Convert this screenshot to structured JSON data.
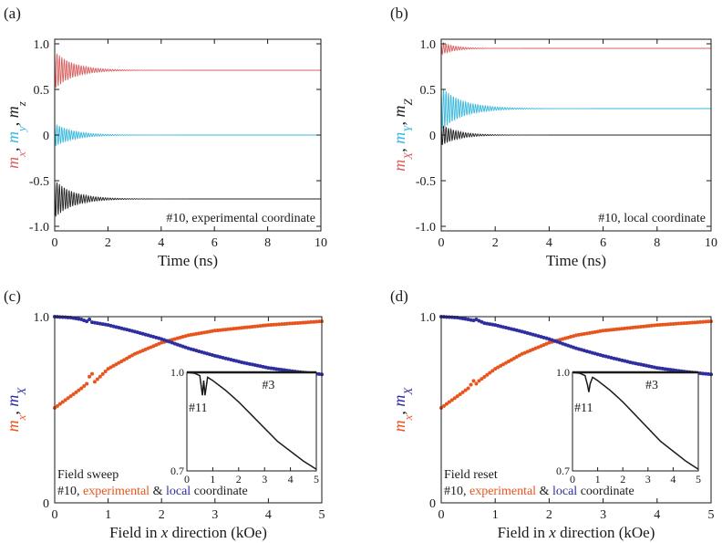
{
  "colors": {
    "mx": "#d95f5f",
    "my": "#39b8dc",
    "mz": "#222222",
    "experimental": "#e8541c",
    "local": "#2e2ea0",
    "axis": "#1a1a1a"
  },
  "chart_data": [
    {
      "id": "a",
      "panel_label": "(a)",
      "type": "line",
      "title": "",
      "xlabel": "Time (ns)",
      "ylabel_parts": [
        {
          "text": "m",
          "sub": "x",
          "color": "#d95f5f"
        },
        {
          "text": ", ",
          "sub": "",
          "color": "#1a1a1a"
        },
        {
          "text": "m",
          "sub": "y",
          "color": "#39b8dc"
        },
        {
          "text": ", ",
          "sub": "",
          "color": "#1a1a1a"
        },
        {
          "text": "m",
          "sub": "z",
          "color": "#222222"
        }
      ],
      "xlim": [
        0,
        10
      ],
      "ylim": [
        -1.05,
        1.05
      ],
      "xticks": [
        0,
        2,
        4,
        6,
        8,
        10
      ],
      "xtick_labels": [
        "0",
        "2",
        "4",
        "6",
        "8",
        "10"
      ],
      "yticks": [
        1.0,
        0.5,
        0,
        -0.5,
        -1.0
      ],
      "ytick_labels": [
        "1.0",
        "0.5",
        "0",
        "-0.5",
        "-1.0"
      ],
      "annotation": "#10, experimental coordinate",
      "series": [
        {
          "name": "m_x",
          "color": "#d95f5f",
          "final": 0.71,
          "initial_amplitude": 0.21,
          "damping_ns": 0.7
        },
        {
          "name": "m_y",
          "color": "#39b8dc",
          "final": 0.0,
          "initial_amplitude": 0.13,
          "damping_ns": 0.7
        },
        {
          "name": "m_z",
          "color": "#222222",
          "final": -0.7,
          "initial_amplitude": 0.21,
          "damping_ns": 0.7
        }
      ]
    },
    {
      "id": "b",
      "panel_label": "(b)",
      "type": "line",
      "title": "",
      "xlabel": "Time (ns)",
      "ylabel_parts": [
        {
          "text": "m",
          "sub": "X",
          "color": "#d95f5f"
        },
        {
          "text": ", ",
          "sub": "",
          "color": "#1a1a1a"
        },
        {
          "text": "m",
          "sub": "Y",
          "color": "#39b8dc"
        },
        {
          "text": ", ",
          "sub": "",
          "color": "#1a1a1a"
        },
        {
          "text": "m",
          "sub": "Z",
          "color": "#222222"
        }
      ],
      "xlim": [
        0,
        10
      ],
      "ylim": [
        -1.05,
        1.05
      ],
      "xticks": [
        0,
        2,
        4,
        6,
        8,
        10
      ],
      "xtick_labels": [
        "0",
        "2",
        "4",
        "6",
        "8",
        "10"
      ],
      "yticks": [
        1.0,
        0.5,
        0,
        -0.5,
        -1.0
      ],
      "ytick_labels": [
        "1.0",
        "0.5",
        "0",
        "-0.5",
        "-1.0"
      ],
      "annotation": "#10, local coordinate",
      "series": [
        {
          "name": "m_X",
          "color": "#d95f5f",
          "final": 0.95,
          "initial_amplitude": 0.07,
          "damping_ns": 0.5
        },
        {
          "name": "m_Y",
          "color": "#39b8dc",
          "final": 0.29,
          "initial_amplitude": 0.24,
          "damping_ns": 0.8
        },
        {
          "name": "m_Z",
          "color": "#222222",
          "final": 0.0,
          "initial_amplitude": 0.12,
          "damping_ns": 0.6
        }
      ]
    },
    {
      "id": "c",
      "panel_label": "(c)",
      "type": "scatter",
      "title": "",
      "xlabel_parts": [
        "Field in ",
        "x",
        " direction (kOe)"
      ],
      "ylabel_parts": [
        {
          "text": "m",
          "sub": "x",
          "color": "#e8541c"
        },
        {
          "text": ", ",
          "sub": "",
          "color": "#1a1a1a"
        },
        {
          "text": "m",
          "sub": "X",
          "color": "#2e2ea0"
        }
      ],
      "xlim": [
        0,
        5
      ],
      "ylim": [
        0,
        1.0
      ],
      "xticks": [
        0,
        1,
        2,
        3,
        4,
        5
      ],
      "xtick_labels": [
        "0",
        "1",
        "2",
        "3",
        "4",
        "5"
      ],
      "yticks": [
        1.0,
        0
      ],
      "ytick_labels": [
        "1.0",
        "0"
      ],
      "legend_lines": {
        "line1": "Field sweep",
        "line2_prefix": "#10, ",
        "experimental": "experimental",
        "amp": " & ",
        "local": "local",
        "suffix": " coordinate"
      },
      "series": [
        {
          "name": "m_x (experimental)",
          "color": "#e8541c",
          "x": [
            0,
            0.5,
            0.62,
            0.68,
            0.75,
            1.0,
            1.5,
            2.0,
            2.5,
            3.0,
            3.5,
            4.0,
            4.5,
            5.0
          ],
          "y": [
            0.51,
            0.615,
            0.645,
            0.71,
            0.65,
            0.72,
            0.8,
            0.86,
            0.9,
            0.925,
            0.94,
            0.955,
            0.965,
            0.975
          ]
        },
        {
          "name": "m_X (local)",
          "color": "#2e2ea0",
          "x": [
            0,
            0.3,
            0.5,
            0.6,
            0.65,
            0.7,
            0.8,
            1.0,
            1.5,
            2.0,
            2.5,
            3.0,
            3.5,
            4.0,
            4.5,
            5.0
          ],
          "y": [
            1.0,
            0.995,
            0.985,
            0.975,
            0.985,
            0.97,
            0.965,
            0.955,
            0.92,
            0.88,
            0.83,
            0.79,
            0.755,
            0.725,
            0.705,
            0.69
          ]
        }
      ],
      "inset": {
        "xlim": [
          0,
          5
        ],
        "ylim": [
          0.7,
          1.0
        ],
        "xticks": [
          0,
          1,
          2,
          3,
          4,
          5
        ],
        "xtick_labels": [
          "0",
          "1",
          "2",
          "3",
          "4",
          "5"
        ],
        "yticks": [
          1.0,
          0.7
        ],
        "ytick_labels": [
          "1.0",
          "0.7"
        ],
        "labels": [
          "#3",
          "#11"
        ],
        "series": [
          {
            "name": "#3",
            "x": [
              0,
              5
            ],
            "y": [
              1.0,
              1.0
            ]
          },
          {
            "name": "#11",
            "x": [
              0,
              0.3,
              0.5,
              0.6,
              0.65,
              0.7,
              0.8,
              1.0,
              1.5,
              2.0,
              2.5,
              3.0,
              3.5,
              4.0,
              4.5,
              5.0
            ],
            "y": [
              1.0,
              0.997,
              0.99,
              0.93,
              0.975,
              0.93,
              0.985,
              0.975,
              0.945,
              0.91,
              0.87,
              0.83,
              0.79,
              0.76,
              0.73,
              0.705
            ]
          }
        ]
      }
    },
    {
      "id": "d",
      "panel_label": "(d)",
      "type": "scatter",
      "title": "",
      "xlabel_parts": [
        "Field in ",
        "x",
        " direction (kOe)"
      ],
      "ylabel_parts": [
        {
          "text": "m",
          "sub": "x",
          "color": "#e8541c"
        },
        {
          "text": ", ",
          "sub": "",
          "color": "#1a1a1a"
        },
        {
          "text": "m",
          "sub": "X",
          "color": "#2e2ea0"
        }
      ],
      "xlim": [
        0,
        5
      ],
      "ylim": [
        0,
        1.0
      ],
      "xticks": [
        0,
        1,
        2,
        3,
        4,
        5
      ],
      "xtick_labels": [
        "0",
        "1",
        "2",
        "3",
        "4",
        "5"
      ],
      "yticks": [
        1.0,
        0
      ],
      "ytick_labels": [
        "1.0",
        "0"
      ],
      "legend_lines": {
        "line1": "Field reset",
        "line2_prefix": "#10, ",
        "experimental": "experimental",
        "amp": " & ",
        "local": "local",
        "suffix": " coordinate"
      },
      "series": [
        {
          "name": "m_x (experimental)",
          "color": "#e8541c",
          "x": [
            0,
            0.5,
            0.6,
            0.65,
            0.7,
            1.0,
            1.5,
            2.0,
            2.5,
            3.0,
            3.5,
            4.0,
            4.5,
            5.0
          ],
          "y": [
            0.51,
            0.615,
            0.655,
            0.64,
            0.655,
            0.72,
            0.8,
            0.86,
            0.9,
            0.925,
            0.94,
            0.955,
            0.965,
            0.975
          ]
        },
        {
          "name": "m_X (local)",
          "color": "#2e2ea0",
          "x": [
            0,
            0.3,
            0.5,
            0.6,
            0.65,
            0.7,
            0.8,
            1.0,
            1.5,
            2.0,
            2.5,
            3.0,
            3.5,
            4.0,
            4.5,
            5.0
          ],
          "y": [
            1.0,
            0.995,
            0.985,
            0.98,
            0.985,
            0.978,
            0.965,
            0.955,
            0.92,
            0.88,
            0.83,
            0.79,
            0.755,
            0.725,
            0.705,
            0.69
          ]
        }
      ],
      "inset": {
        "xlim": [
          0,
          5
        ],
        "ylim": [
          0.7,
          1.0
        ],
        "xticks": [
          0,
          1,
          2,
          3,
          4,
          5
        ],
        "xtick_labels": [
          "0",
          "1",
          "2",
          "3",
          "4",
          "5"
        ],
        "yticks": [
          1.0,
          0.7
        ],
        "ytick_labels": [
          "1.0",
          "0.7"
        ],
        "labels": [
          "#3",
          "#11"
        ],
        "series": [
          {
            "name": "#3",
            "x": [
              0,
              5
            ],
            "y": [
              1.0,
              1.0
            ]
          },
          {
            "name": "#11",
            "x": [
              0,
              0.3,
              0.5,
              0.6,
              0.65,
              0.7,
              0.8,
              1.0,
              1.5,
              2.0,
              2.5,
              3.0,
              3.5,
              4.0,
              4.5,
              5.0
            ],
            "y": [
              1.0,
              0.997,
              0.99,
              0.96,
              0.94,
              0.965,
              0.985,
              0.975,
              0.945,
              0.91,
              0.87,
              0.83,
              0.79,
              0.76,
              0.73,
              0.705
            ]
          }
        ]
      }
    }
  ]
}
